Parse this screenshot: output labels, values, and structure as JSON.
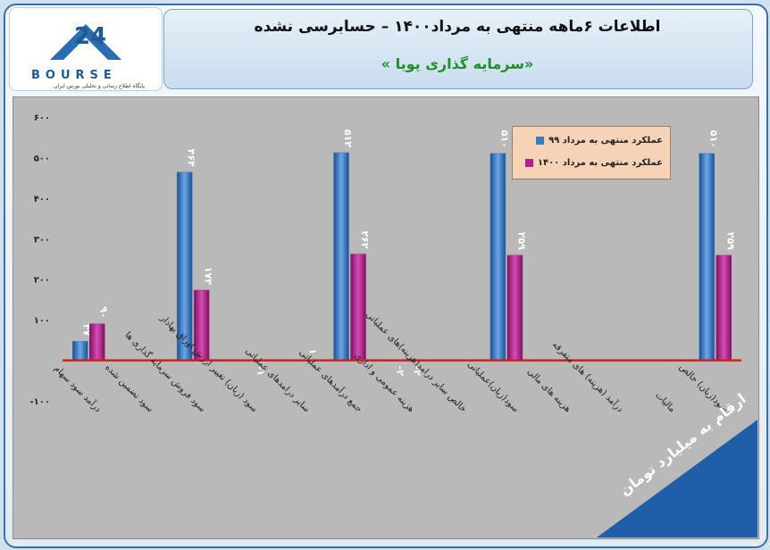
{
  "header": {
    "title": "اطلاعات ۶ماهه منتهی به مرداد۱۴۰۰ – حسابرسی نشده",
    "company": "«سرمایه گذاری پویا »"
  },
  "logo": {
    "word": "BOURSE",
    "tagline": "پایگاه اطلاع رسانی و تحلیلی بورس ایران"
  },
  "unit_note": "ارقام به میلیارد تومان",
  "colors": {
    "series1": "#3b7bc8",
    "series2": "#b0208c",
    "zero_line": "#d42020",
    "plot_bg": "#b9b9b9"
  },
  "chart_data": {
    "type": "bar",
    "categories": [
      "درآمد سود سهام",
      "سود تضمین شده",
      "سود فروش سرمایه گذاری ها",
      "سود (زیان) تغییر ارزش اوراق بهادار",
      "سایر درامدهای عملیاتی",
      "جمع درآمدهای عملیاتی",
      "هزینه عمومی و اداری",
      "خالص سایر درامد(هزینه)های عملیاتی",
      "سود(زیان)عملیاتی",
      "هزینه های مالی",
      "درآمد (هزینه) های متفرقه",
      "مالیات",
      "سود(زیان) خالص"
    ],
    "series": [
      {
        "name": "عملکرد منتهی به مرداد ۹۹",
        "values": [
          47,
          0,
          464,
          0,
          0,
          512,
          -2,
          0,
          510,
          0,
          0,
          0,
          510
        ]
      },
      {
        "name": "عملکرد منتهی به مرداد ۱۴۰۰",
        "values": [
          90,
          0,
          173,
          -1,
          1,
          262,
          -2,
          0,
          259,
          0,
          0,
          0,
          259
        ]
      }
    ],
    "data_labels": [
      [
        "۴۷",
        "",
        "۴۶۴",
        "",
        "",
        "۵۱۲",
        "-۲",
        "",
        "۵۱۰",
        "",
        "",
        "",
        "۵۱۰"
      ],
      [
        "۹۰",
        "",
        "۱۷۳",
        "-۱",
        "۱",
        "۲۶۲",
        "-۲",
        "",
        "۲۵۹",
        "",
        "",
        "",
        "۲۵۹"
      ]
    ],
    "y_ticks": [
      600,
      500,
      400,
      300,
      200,
      100,
      -100
    ],
    "y_tick_labels": [
      "۶۰۰",
      "۵۰۰",
      "۴۰۰",
      "۳۰۰",
      "۲۰۰",
      "۱۰۰",
      "-۱۰۰"
    ],
    "ylim": [
      -100,
      600
    ],
    "grid": false,
    "legend_position": "top-right"
  }
}
